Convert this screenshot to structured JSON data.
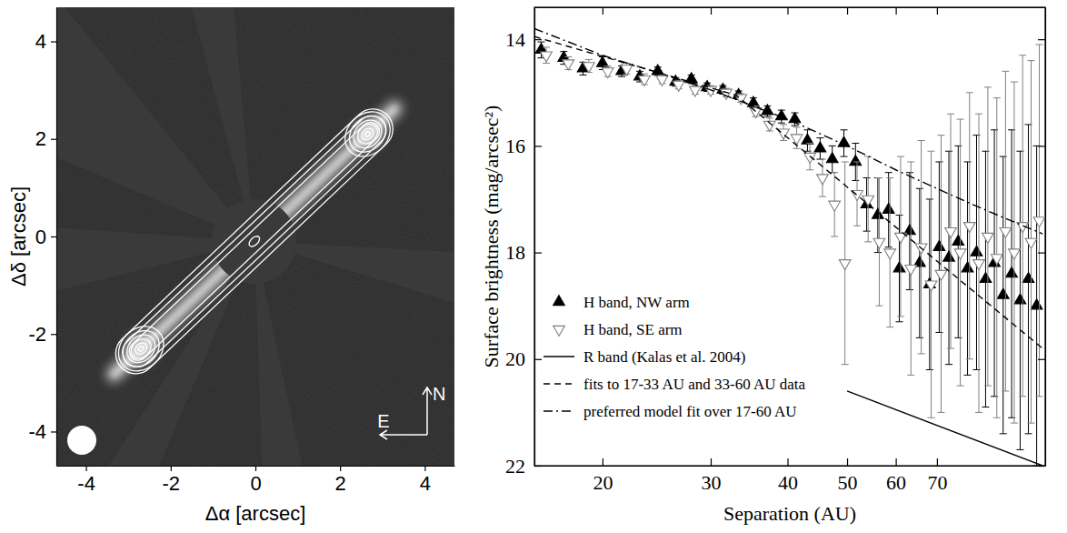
{
  "chart_data": [
    {
      "type": "image",
      "xlabel": "Δα [arcsec]",
      "ylabel": "Δδ [arcsec]",
      "xlim": [
        -4.7,
        4.7
      ],
      "ylim": [
        -4.7,
        4.7
      ],
      "xticks": [
        -4,
        -2,
        0,
        2,
        4
      ],
      "yticks": [
        -4,
        -2,
        0,
        2,
        4
      ],
      "contour_peaks": [
        {
          "x": -2.7,
          "y": -2.3
        },
        {
          "x": 2.65,
          "y": 2.1
        }
      ],
      "compass": [
        "N",
        "E"
      ]
    },
    {
      "type": "scatter",
      "xlabel": "Separation (AU)",
      "ylabel": "Surface brightness (mag/arcsec²)",
      "log": "x",
      "xlim": [
        15.5,
        105
      ],
      "ylim": [
        22,
        13.4
      ],
      "xticks": [
        20,
        30,
        40,
        50,
        60,
        70
      ],
      "yticks": [
        14,
        16,
        18,
        20,
        22
      ],
      "legend": "lower left",
      "series": [
        {
          "name": "H band, NW arm",
          "type": "scatter",
          "marker": "triangle-up-filled",
          "color": "#000000",
          "x": [
            15.9,
            17.3,
            18.6,
            20.0,
            21.5,
            23.0,
            24.6,
            26.3,
            27.9,
            29.6,
            31.4,
            33.3,
            35.2,
            37.1,
            39.1,
            41.1,
            43.1,
            45.2,
            47.3,
            49.4,
            51.6,
            53.8,
            56.1,
            58.4,
            60.8,
            63.2,
            65.6,
            68.1,
            70.6,
            73.2,
            75.8,
            78.5,
            81.2,
            84.0,
            86.8,
            89.7,
            92.6,
            95.6,
            98.6,
            101.7
          ],
          "values": [
            14.2,
            14.35,
            14.55,
            14.45,
            14.6,
            14.7,
            14.6,
            14.8,
            14.75,
            14.9,
            14.95,
            15.05,
            15.2,
            15.35,
            15.45,
            15.5,
            15.9,
            16.05,
            16.25,
            15.95,
            16.3,
            17.1,
            17.3,
            17.2,
            18.3,
            17.6,
            18.2,
            18.6,
            17.9,
            18.1,
            17.8,
            18.3,
            18.0,
            18.5,
            18.2,
            18.8,
            18.4,
            18.9,
            18.5,
            19.0
          ],
          "errors": [
            0.15,
            0.12,
            0.12,
            0.12,
            0.1,
            0.1,
            0.08,
            0.08,
            0.08,
            0.08,
            0.08,
            0.08,
            0.1,
            0.1,
            0.12,
            0.12,
            0.2,
            0.2,
            0.25,
            0.25,
            0.35,
            0.5,
            0.7,
            0.7,
            1.0,
            1.1,
            1.4,
            1.6,
            1.6,
            2.0,
            1.8,
            2.0,
            2.2,
            2.4,
            2.5,
            2.6,
            2.7,
            2.8,
            2.9,
            3.0
          ]
        },
        {
          "name": "H band, SE arm",
          "type": "scatter",
          "marker": "triangle-down-open",
          "color": "#808080",
          "x": [
            16.2,
            17.6,
            19.0,
            20.4,
            21.9,
            23.4,
            25.0,
            26.6,
            28.3,
            30.0,
            31.8,
            33.6,
            35.5,
            37.4,
            39.4,
            41.4,
            43.5,
            45.6,
            47.7,
            49.6,
            51.9,
            54.1,
            56.4,
            58.7,
            61.1,
            63.5,
            66.0,
            68.5,
            71.1,
            73.7,
            76.4,
            79.1,
            81.9,
            84.7,
            87.6,
            90.5,
            93.5,
            96.5,
            99.6,
            102.7
          ],
          "values": [
            14.3,
            14.45,
            14.5,
            14.6,
            14.55,
            14.75,
            14.75,
            14.85,
            14.95,
            14.95,
            15.0,
            15.1,
            15.35,
            15.6,
            15.75,
            15.85,
            16.2,
            16.6,
            17.1,
            18.2,
            16.9,
            17.0,
            17.8,
            18.0,
            17.7,
            18.3,
            17.9,
            18.6,
            18.4,
            17.6,
            18.0,
            17.5,
            18.2,
            17.7,
            18.1,
            17.6,
            18.0,
            17.5,
            17.8,
            17.4
          ],
          "errors": [
            0.15,
            0.12,
            0.12,
            0.1,
            0.1,
            0.1,
            0.08,
            0.08,
            0.08,
            0.08,
            0.08,
            0.08,
            0.1,
            0.12,
            0.15,
            0.2,
            0.25,
            0.35,
            0.6,
            1.9,
            0.6,
            0.8,
            1.2,
            1.4,
            1.5,
            2.0,
            2.0,
            2.5,
            2.6,
            2.2,
            2.5,
            2.5,
            2.8,
            2.8,
            3.0,
            3.0,
            3.2,
            3.2,
            3.4,
            3.3
          ]
        },
        {
          "name": "R band (Kalas et al. 2004)",
          "type": "line",
          "line_style": "solid",
          "color": "#000000",
          "x": [
            50,
            104
          ],
          "values": [
            20.6,
            22.0
          ]
        },
        {
          "name": "fits to 17-33 AU and 33-60 AU data",
          "type": "line",
          "line_style": "dashed",
          "color": "#000000",
          "x": [
            15.5,
            33,
            104
          ],
          "values": [
            13.95,
            15.05,
            19.8
          ]
        },
        {
          "name": "preferred model fit over 17-60 AU",
          "type": "line",
          "line_style": "dashdot",
          "color": "#000000",
          "x": [
            15.5,
            20,
            25,
            30,
            40,
            50,
            60,
            70,
            80,
            90,
            104
          ],
          "values": [
            13.8,
            14.3,
            14.65,
            14.95,
            15.5,
            16.0,
            16.45,
            16.8,
            17.1,
            17.35,
            17.65
          ]
        }
      ]
    }
  ]
}
